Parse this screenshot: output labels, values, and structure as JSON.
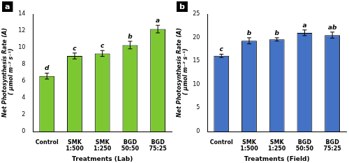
{
  "chart_data": [
    {
      "type": "bar",
      "title": "a",
      "categories": [
        "Control",
        "SMK\n1:500",
        "SMK\n1:250",
        "BGD\n50:50",
        "BGD\n75:25"
      ],
      "values": [
        6.6,
        9.0,
        9.3,
        10.3,
        12.2
      ],
      "errors": [
        0.35,
        0.35,
        0.35,
        0.45,
        0.45
      ],
      "letters": [
        "d",
        "c",
        "c",
        "b",
        "a"
      ],
      "color": "#7dc832",
      "y_label": "Net Photosynthesis Rate (A)\n ( µmol m⁻² s⁻¹)",
      "x_label": "Treatments (Lab)",
      "ylim": [
        0,
        14
      ],
      "yticks": [
        0,
        2,
        4,
        6,
        8,
        10,
        12,
        14
      ],
      "grid": false
    },
    {
      "type": "bar",
      "title": "b",
      "categories": [
        "Control",
        "SMK\n1:500",
        "SMK\n1:250",
        "BGD\n50:50",
        "BGD\n75:25"
      ],
      "values": [
        16.1,
        19.3,
        19.6,
        21.0,
        20.5
      ],
      "errors": [
        0.35,
        0.65,
        0.35,
        0.6,
        0.65
      ],
      "letters": [
        "c",
        "b",
        "b",
        "a",
        "ab"
      ],
      "color": "#4472c4",
      "y_label": "Net Photosynthesis Rate (A)\n ( µmol m⁻² s⁻¹)",
      "x_label": "Treatments (Field)",
      "ylim": [
        0,
        25
      ],
      "yticks": [
        0,
        5,
        10,
        15,
        20,
        25
      ],
      "grid": false
    }
  ]
}
